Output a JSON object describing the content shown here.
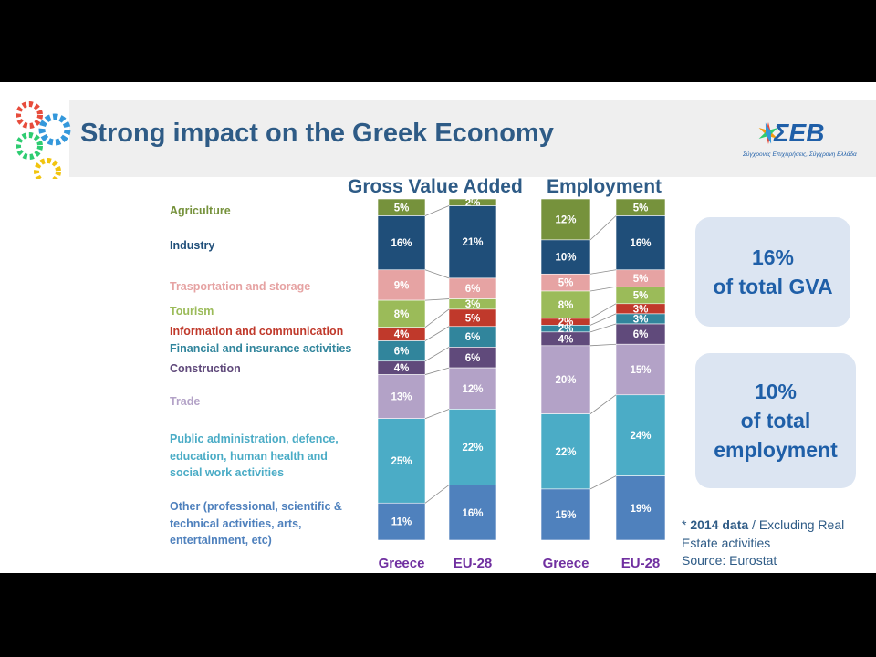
{
  "title": "Strong impact on the Greek Economy",
  "logo": {
    "text": "ΣΕΒ",
    "tagline": "Σύγχρονες Επιχειρήσεις, Σύγχρονη Ελλάδα"
  },
  "chart_headers": {
    "gva": "Gross Value Added",
    "employment": "Employment"
  },
  "legend": [
    {
      "label": "Agriculture",
      "color": "#76923c"
    },
    {
      "label": "Industry",
      "color": "#1f4e79"
    },
    {
      "label": "Trasportation and storage",
      "color": "#e6a3a3"
    },
    {
      "label": "Tourism",
      "color": "#9bbb59"
    },
    {
      "label": "Information and communication",
      "color": "#c0392b"
    },
    {
      "label": "Financial and insurance activities",
      "color": "#31859c"
    },
    {
      "label": "Construction",
      "color": "#604a7b"
    },
    {
      "label": "Trade",
      "color": "#b3a2c7"
    },
    {
      "label": "Public administration, defence, education, human health and social work activities",
      "color": "#4bacc6"
    },
    {
      "label": "Other (professional, scientific & technical activities, arts, entertainment, etc)",
      "color": "#4f81bd"
    }
  ],
  "callouts": {
    "gva": {
      "line1": "16%",
      "line2": "of total GVA"
    },
    "employment": {
      "line1": "10%",
      "line2": "of total",
      "line3": "employment"
    }
  },
  "note": {
    "prefix": "* ",
    "bold": "2014 data",
    "rest": " / Excluding Real Estate activities",
    "source": "Source: Eurostat"
  },
  "chart_data": [
    {
      "type": "bar",
      "title": "Gross Value Added",
      "stacked": true,
      "categories": [
        "Greece",
        "EU-28"
      ],
      "series": [
        {
          "name": "Agriculture",
          "values": [
            5,
            2
          ]
        },
        {
          "name": "Industry",
          "values": [
            16,
            21
          ]
        },
        {
          "name": "Trasportation and storage",
          "values": [
            9,
            6
          ]
        },
        {
          "name": "Tourism",
          "values": [
            8,
            3
          ]
        },
        {
          "name": "Information and communication",
          "values": [
            4,
            5
          ]
        },
        {
          "name": "Financial and insurance activities",
          "values": [
            6,
            6
          ]
        },
        {
          "name": "Construction",
          "values": [
            4,
            6
          ]
        },
        {
          "name": "Trade",
          "values": [
            13,
            12
          ]
        },
        {
          "name": "Public administration, defence, education, human health and social work activities",
          "values": [
            25,
            22
          ]
        },
        {
          "name": "Other (professional, scientific & technical activities, arts, entertainment, etc)",
          "values": [
            11,
            16
          ]
        }
      ]
    },
    {
      "type": "bar",
      "title": "Employment",
      "stacked": true,
      "categories": [
        "Greece",
        "EU-28"
      ],
      "series": [
        {
          "name": "Agriculture",
          "values": [
            12,
            5
          ]
        },
        {
          "name": "Industry",
          "values": [
            10,
            16
          ]
        },
        {
          "name": "Trasportation and storage",
          "values": [
            5,
            5
          ]
        },
        {
          "name": "Tourism",
          "values": [
            8,
            5
          ]
        },
        {
          "name": "Information and communication",
          "values": [
            2,
            3
          ]
        },
        {
          "name": "Financial and insurance activities",
          "values": [
            2,
            3
          ]
        },
        {
          "name": "Construction",
          "values": [
            4,
            6
          ]
        },
        {
          "name": "Trade",
          "values": [
            20,
            15
          ]
        },
        {
          "name": "Public administration, defence, education, human health and social work activities",
          "values": [
            22,
            24
          ]
        },
        {
          "name": "Other (professional, scientific & technical activities, arts, entertainment, etc)",
          "values": [
            15,
            19
          ]
        }
      ]
    }
  ]
}
